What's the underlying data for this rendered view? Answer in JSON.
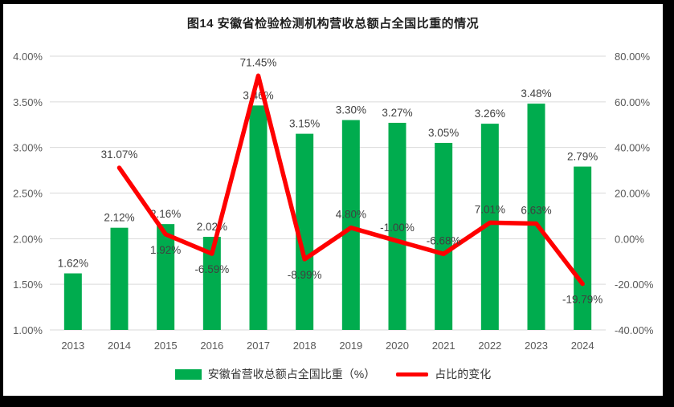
{
  "chart_data": {
    "type": "bar+line",
    "title": "图14 安徽省检验检测机构营收总额占全国比重的情况",
    "categories": [
      "2013",
      "2014",
      "2015",
      "2016",
      "2017",
      "2018",
      "2019",
      "2020",
      "2021",
      "2022",
      "2023",
      "2024"
    ],
    "series": [
      {
        "name": "安徽省营收总额占全国比重（%）",
        "type": "bar",
        "axis": "left",
        "color": "#00AC4E",
        "values": [
          1.62,
          2.12,
          2.16,
          2.02,
          3.46,
          3.15,
          3.3,
          3.27,
          3.05,
          3.26,
          3.48,
          2.79
        ],
        "labels": [
          "1.62%",
          "2.12%",
          "2.16%",
          "2.02%",
          "3.46%",
          "3.15%",
          "3.30%",
          "3.27%",
          "3.05%",
          "3.26%",
          "3.48%",
          "2.79%"
        ]
      },
      {
        "name": "占比的变化",
        "type": "line",
        "axis": "right",
        "color": "#FF0000",
        "values": [
          null,
          31.07,
          1.92,
          -6.59,
          71.45,
          -8.99,
          4.8,
          -1.0,
          -6.68,
          7.01,
          6.63,
          -19.79
        ],
        "labels": [
          null,
          "31.07%",
          "1.92%",
          "-6.59%",
          "71.45%",
          "-8.99%",
          "4.80%",
          "-1.00%",
          "-6.68%",
          "7.01%",
          "6.63%",
          "-19.79%"
        ],
        "label_positions": [
          null,
          "above",
          "below",
          "below",
          "above",
          "below",
          "above",
          "above",
          "above",
          "above",
          "above",
          "below"
        ]
      }
    ],
    "left_axis": {
      "min": 1.0,
      "max": 4.0,
      "step": 0.5,
      "tick_labels": [
        "1.00%",
        "1.50%",
        "2.00%",
        "2.50%",
        "3.00%",
        "3.50%",
        "4.00%"
      ]
    },
    "right_axis": {
      "min": -40,
      "max": 80,
      "step": 20,
      "tick_labels": [
        "-40.00%",
        "-20.00%",
        "0.00%",
        "20.00%",
        "40.00%",
        "60.00%",
        "80.00%"
      ]
    },
    "grid": true,
    "legend_position": "bottom",
    "colors": {
      "grid": "#D9D9D9",
      "tick_text": "#595959",
      "label_text": "#404040",
      "frame": "#000000"
    }
  }
}
